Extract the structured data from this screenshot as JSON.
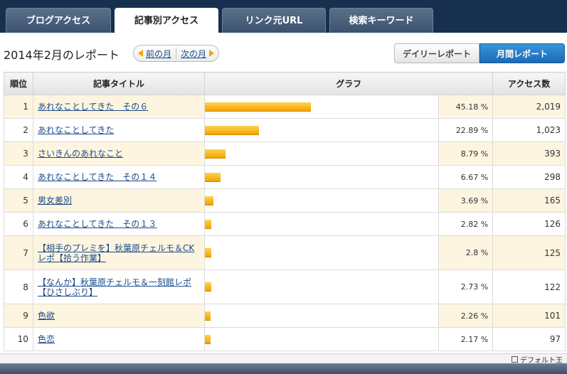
{
  "tabs": [
    {
      "label": "ブログアクセス",
      "active": false
    },
    {
      "label": "記事別アクセス",
      "active": true
    },
    {
      "label": "リンク元URL",
      "active": false
    },
    {
      "label": "検索キーワード",
      "active": false
    }
  ],
  "report": {
    "title": "2014年2月のレポート",
    "prev_label": "前の月",
    "next_label": "次の月"
  },
  "view_toggle": {
    "daily_label": "デイリーレポート",
    "monthly_label": "月間レポート",
    "selected": "monthly"
  },
  "table": {
    "headers": [
      "順位",
      "記事タイトル",
      "グラフ",
      "アクセス数"
    ],
    "rows": [
      {
        "rank": "1",
        "title": "あれなことしてきた　その６",
        "percent": "45.18 %",
        "fraction": 0.4518,
        "count": "2,019"
      },
      {
        "rank": "2",
        "title": "あれなことしてきた",
        "percent": "22.89 %",
        "fraction": 0.2289,
        "count": "1,023"
      },
      {
        "rank": "3",
        "title": "さいきんのあれなこと",
        "percent": "8.79 %",
        "fraction": 0.0879,
        "count": "393"
      },
      {
        "rank": "4",
        "title": "あれなことしてきた　その１４",
        "percent": "6.67 %",
        "fraction": 0.0667,
        "count": "298"
      },
      {
        "rank": "5",
        "title": "男女差別",
        "percent": "3.69 %",
        "fraction": 0.0369,
        "count": "165"
      },
      {
        "rank": "6",
        "title": "あれなことしてきた　その１３",
        "percent": "2.82 %",
        "fraction": 0.0282,
        "count": "126"
      },
      {
        "rank": "7",
        "title": "【相手のプレミを】秋葉原チェルモ＆CKレポ【拾う作業】",
        "percent": "2.8 %",
        "fraction": 0.028,
        "count": "125"
      },
      {
        "rank": "8",
        "title": "【なんか】秋葉原チェルモ＆一刻館レポ【ひさしぶり】",
        "percent": "2.73 %",
        "fraction": 0.0273,
        "count": "122"
      },
      {
        "rank": "9",
        "title": "色欲",
        "percent": "2.26 %",
        "fraction": 0.0226,
        "count": "101"
      },
      {
        "rank": "10",
        "title": "色恋",
        "percent": "2.17 %",
        "fraction": 0.0217,
        "count": "97"
      }
    ]
  },
  "footer": {
    "label": "デフォルト王"
  },
  "colors": {
    "bar": "#f5b000",
    "accent": "#1f74bf",
    "odd_row": "#fdf5df"
  }
}
